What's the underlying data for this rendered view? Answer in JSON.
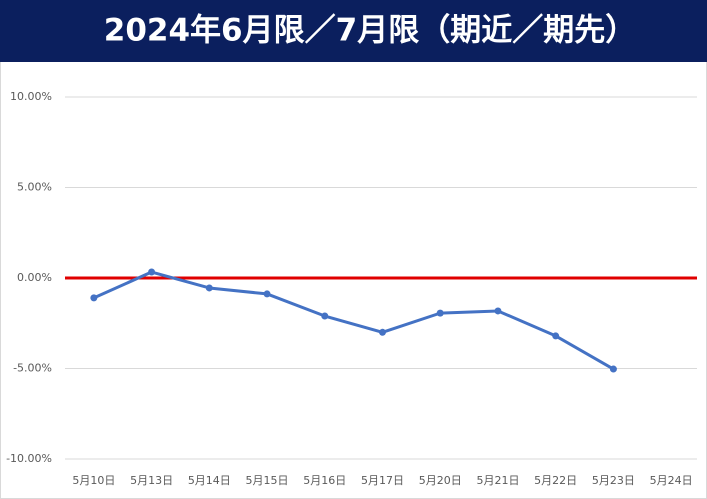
{
  "chart_data": {
    "type": "line",
    "title": "2024年6月限／7月限（期近／期先）",
    "categories": [
      "5月10日",
      "5月13日",
      "5月14日",
      "5月15日",
      "5月16日",
      "5月17日",
      "5月20日",
      "5月21日",
      "5月22日",
      "5月23日",
      "5月24日"
    ],
    "series": [
      {
        "color": "#4472c4",
        "values": [
          -1.1,
          0.33,
          -0.55,
          -0.88,
          -2.1,
          -3.0,
          -1.94,
          -1.82,
          -3.2,
          -5.03,
          null
        ]
      }
    ],
    "ylim": [
      -10,
      10
    ],
    "yticks": [
      {
        "value": -10,
        "label": "-10.00%"
      },
      {
        "value": -5,
        "label": "-5.00%"
      },
      {
        "value": 0,
        "label": "0.00%"
      },
      {
        "value": 5,
        "label": "5.00%"
      },
      {
        "value": 10,
        "label": "10.00%"
      }
    ],
    "grid": true,
    "reference_line": {
      "value": 0,
      "color": "#e00000"
    }
  }
}
